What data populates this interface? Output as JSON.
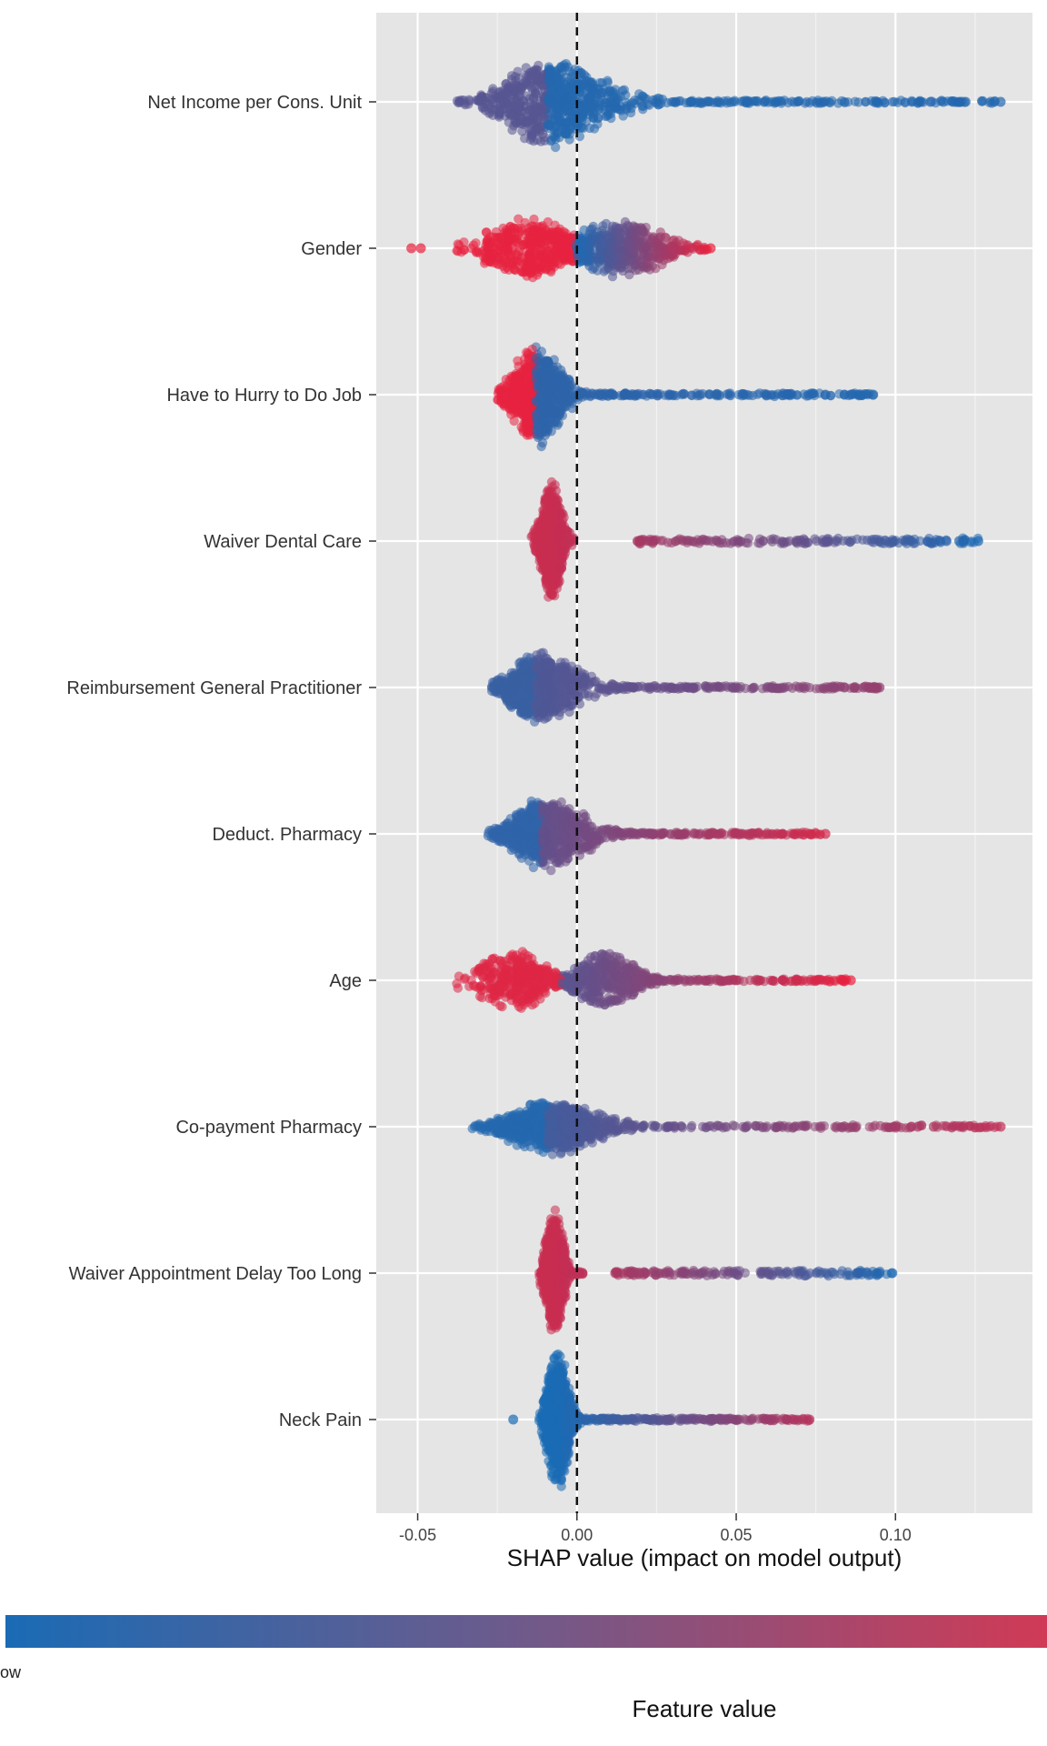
{
  "chart_data": {
    "type": "scatter",
    "subtype": "shap-summary-beeswarm",
    "xlabel": "SHAP value (impact on model output)",
    "xlim": [
      -0.063,
      0.143
    ],
    "x_ticks": [
      -0.05,
      0.0,
      0.05,
      0.1
    ],
    "x_tick_labels": [
      "-0.05",
      "0.00",
      "0.05",
      "0.10"
    ],
    "zero_line": "dashed",
    "grid": true,
    "colors": {
      "low": "#1a6bb5",
      "high": "#e8223f",
      "panel": "#e5e5e5",
      "grid": "#ffffff"
    },
    "legend": {
      "title": "Feature value",
      "low_label": "ow",
      "placement": "bottom"
    },
    "features": [
      {
        "name": "Net Income per Cons. Unit",
        "min": -0.039,
        "max": 0.133,
        "peak": -0.009,
        "spread_left": 0.012,
        "spread_right": 0.016,
        "height": 0.75,
        "color_left": 0.3,
        "color_right": 0.05,
        "tail_color": 0.05,
        "outliers": [
          0.108,
          0.111,
          0.115,
          0.118,
          0.12,
          0.122,
          0.131,
          0.133
        ]
      },
      {
        "name": "Gender",
        "min": -0.052,
        "max": 0.042,
        "peak": -0.015,
        "peak2": 0.014,
        "spread_left": 0.012,
        "spread_right": 0.012,
        "height": 0.5,
        "color_left": 1.0,
        "color_right": 0.0,
        "tail_color": 1.0,
        "outliers": [
          -0.052,
          -0.049,
          0.042
        ]
      },
      {
        "name": "Have to Hurry to Do Job",
        "min": -0.025,
        "max": 0.093,
        "peak": -0.013,
        "spread_left": 0.006,
        "spread_right": 0.007,
        "height": 0.85,
        "color_left": 1.0,
        "color_right": 0.1,
        "tail_color": 0.05,
        "outliers": [
          0.078,
          0.084,
          0.086,
          0.093
        ]
      },
      {
        "name": "Waiver Dental Care",
        "min": -0.022,
        "max": 0.126,
        "peak": -0.008,
        "spread_left": 0.003,
        "spread_right": 0.003,
        "height": 1.0,
        "color_left": 0.85,
        "color_right": 0.85,
        "tail_color": 0.02,
        "gap_from": -0.001,
        "gap_to": 0.019,
        "outliers": [
          0.019,
          0.023,
          0.114,
          0.116,
          0.12,
          0.126
        ]
      },
      {
        "name": "Reimbursement General Practitioner",
        "min": -0.027,
        "max": 0.095,
        "peak": -0.013,
        "spread_left": 0.007,
        "spread_right": 0.012,
        "height": 0.6,
        "color_left": 0.15,
        "color_right": 0.25,
        "tail_color": 0.6,
        "outliers": [
          0.084,
          0.087,
          0.09,
          0.092,
          0.095
        ]
      },
      {
        "name": "Deduct. Pharmacy",
        "min": -0.028,
        "max": 0.078,
        "peak": -0.011,
        "spread_left": 0.008,
        "spread_right": 0.012,
        "height": 0.6,
        "color_left": 0.1,
        "color_right": 0.35,
        "tail_color": 0.9,
        "outliers": [
          0.07,
          0.073,
          0.075,
          0.078
        ]
      },
      {
        "name": "Age",
        "min": -0.04,
        "max": 0.086,
        "peak": -0.019,
        "peak2": 0.009,
        "spread_left": 0.012,
        "spread_right": 0.008,
        "height": 0.5,
        "color_left": 0.95,
        "color_right": 0.3,
        "tail_color": 1.0,
        "outliers": [
          0.04,
          0.044,
          0.05,
          0.057,
          0.069,
          0.086
        ]
      },
      {
        "name": "Co-payment Pharmacy",
        "min": -0.033,
        "max": 0.133,
        "peak": -0.009,
        "spread_left": 0.011,
        "spread_right": 0.014,
        "height": 0.45,
        "color_left": 0.05,
        "color_right": 0.2,
        "tail_color": 0.8,
        "outliers": [
          0.1,
          0.105,
          0.107,
          0.112,
          0.133
        ]
      },
      {
        "name": "Waiver Appointment Delay Too Long",
        "min": -0.016,
        "max": 0.099,
        "peak": -0.007,
        "spread_left": 0.0025,
        "spread_right": 0.0025,
        "height": 1.05,
        "color_left": 0.85,
        "color_right": 0.85,
        "tail_color": 0.02,
        "gap_from": 0.002,
        "gap_to": 0.012,
        "outliers": [
          0.012,
          0.088,
          0.091,
          0.095,
          0.099
        ]
      },
      {
        "name": "Neck Pain",
        "min": -0.02,
        "max": 0.073,
        "peak": -0.006,
        "spread_left": 0.003,
        "spread_right": 0.003,
        "height": 1.2,
        "color_left": 0.0,
        "color_right": 0.0,
        "tail_color": 0.75,
        "outliers": [
          -0.02,
          0.068,
          0.071,
          0.073
        ]
      }
    ]
  }
}
